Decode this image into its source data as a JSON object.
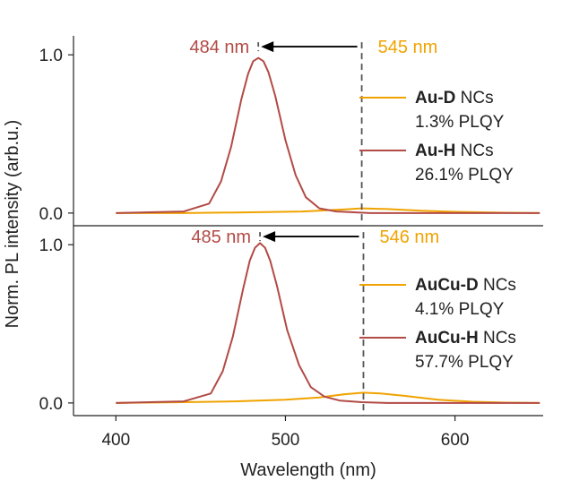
{
  "colors": {
    "au_d": "#f0a300",
    "au_h": "#b24a45",
    "axis": "#222222",
    "guide": "#555555"
  },
  "chart_data": [
    {
      "type": "line",
      "panel": "top",
      "xlim": [
        375,
        652
      ],
      "ylim": [
        -0.08,
        1.12
      ],
      "yticks": [
        {
          "value": 0.0,
          "label": "0.0"
        },
        {
          "value": 1.0,
          "label": "1.0"
        }
      ],
      "xticks": [],
      "annotation_left": {
        "text": "484 nm",
        "x": 484
      },
      "annotation_right": {
        "text": "545 nm",
        "x": 545
      },
      "series": [
        {
          "name": "Au-D",
          "name_suffix": " NCs",
          "plqy": "1.3% PLQY",
          "color": "#f0a300",
          "x": [
            400,
            440,
            480,
            510,
            530,
            545,
            560,
            580,
            600,
            630,
            650
          ],
          "y": [
            0.0,
            0.0,
            0.005,
            0.01,
            0.02,
            0.03,
            0.025,
            0.015,
            0.008,
            0.002,
            0.0
          ]
        },
        {
          "name": "Au-H",
          "name_suffix": " NCs",
          "plqy": "26.1% PLQY",
          "color": "#b24a45",
          "x": [
            400,
            440,
            455,
            462,
            468,
            474,
            478,
            481,
            484,
            487,
            490,
            494,
            500,
            506,
            512,
            520,
            530,
            550,
            600,
            650
          ],
          "y": [
            0.0,
            0.01,
            0.06,
            0.2,
            0.42,
            0.72,
            0.88,
            0.96,
            0.98,
            0.96,
            0.89,
            0.74,
            0.46,
            0.24,
            0.1,
            0.03,
            0.01,
            0.0,
            0.0,
            0.0
          ]
        }
      ]
    },
    {
      "type": "line",
      "panel": "bottom",
      "xlim": [
        375,
        652
      ],
      "ylim": [
        -0.08,
        1.12
      ],
      "yticks": [
        {
          "value": 0.0,
          "label": "0.0"
        },
        {
          "value": 1.0,
          "label": "1.0"
        }
      ],
      "xticks": [
        {
          "value": 400,
          "label": "400"
        },
        {
          "value": 500,
          "label": "500"
        },
        {
          "value": 600,
          "label": "600"
        }
      ],
      "xlabel": "Wavelength (nm)",
      "annotation_left": {
        "text": "485 nm",
        "x": 485
      },
      "annotation_right": {
        "text": "546 nm",
        "x": 546
      },
      "series": [
        {
          "name": "AuCu-D",
          "name_suffix": " NCs",
          "plqy": "4.1% PLQY",
          "color": "#f0a300",
          "x": [
            400,
            440,
            470,
            500,
            520,
            535,
            546,
            556,
            570,
            590,
            610,
            630,
            650
          ],
          "y": [
            0.0,
            0.005,
            0.01,
            0.02,
            0.035,
            0.055,
            0.065,
            0.06,
            0.045,
            0.02,
            0.008,
            0.002,
            0.0
          ]
        },
        {
          "name": "AuCu-H",
          "name_suffix": " NCs",
          "plqy": "57.7% PLQY",
          "color": "#b24a45",
          "x": [
            400,
            440,
            456,
            463,
            469,
            475,
            479,
            482,
            485,
            488,
            491,
            495,
            501,
            508,
            515,
            523,
            532,
            545,
            560,
            600,
            650
          ],
          "y": [
            0.0,
            0.01,
            0.06,
            0.2,
            0.42,
            0.72,
            0.9,
            0.98,
            1.01,
            0.98,
            0.9,
            0.74,
            0.46,
            0.24,
            0.1,
            0.04,
            0.015,
            0.005,
            0.0,
            0.0,
            0.0
          ]
        }
      ]
    }
  ],
  "ylabel": "Norm. PL intensity (arb.u.)"
}
